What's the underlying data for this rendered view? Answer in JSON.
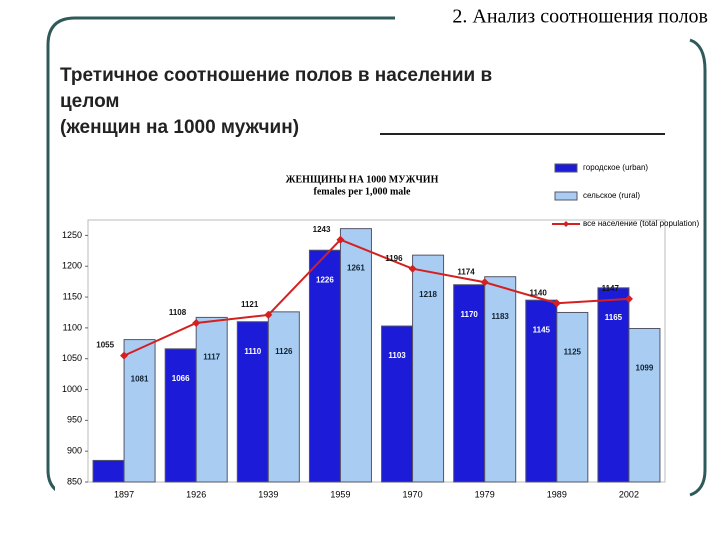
{
  "header": "2. Анализ соотношения полов",
  "slide_title": [
    "Третичное соотношение полов в населении в",
    "целом",
    "(женщин на 1000 мужчин)"
  ],
  "chart_data": {
    "type": "bar",
    "title": "ЖЕНЩИНЫ НА 1000 МУЖЧИН",
    "subtitle": "females per 1,000 male",
    "categories": [
      "1897",
      "1926",
      "1939",
      "1959",
      "1970",
      "1979",
      "1989",
      "2002"
    ],
    "series": [
      {
        "name": "городское (urban)",
        "color": "#1c1cd8",
        "values": [
          885,
          1066,
          1110,
          1226,
          1103,
          1170,
          1145,
          1165
        ]
      },
      {
        "name": "сельское (rural)",
        "color": "#a9cdf2",
        "values": [
          1081,
          1117,
          1126,
          1261,
          1218,
          1183,
          1125,
          1099
        ]
      },
      {
        "name": "все население (total population)",
        "color": "#d42020",
        "type": "line",
        "values": [
          1055,
          1108,
          1121,
          1243,
          1196,
          1174,
          1140,
          1147
        ]
      }
    ],
    "ylim": [
      850,
      1275
    ],
    "yticks": [
      850,
      900,
      950,
      1000,
      1050,
      1100,
      1150,
      1200,
      1250
    ],
    "grid": false
  }
}
